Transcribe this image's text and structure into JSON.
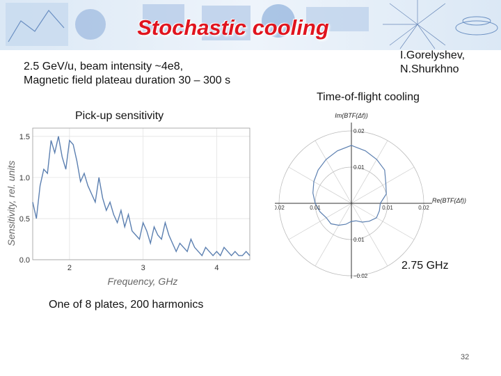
{
  "slide": {
    "title": "Stochastic cooling",
    "params_line1": "2.5 GeV/u, beam intensity ~4e8,",
    "params_line2": "Magnetic field plateau duration 30 – 300 s",
    "authors_line1": "I.Gorelyshev,",
    "authors_line2": "N.Shurkhno",
    "subtitle_tof": "Time-of-flight cooling",
    "pickup_heading": "Pick-up sensitivity",
    "plates_note": "One of 8 plates, 200 harmonics",
    "freq_note": "2.75 GHz",
    "page_number": "32"
  },
  "colors": {
    "title": "#e0141e",
    "trace": "#5b7fb0",
    "banner": "#cfe0f2"
  },
  "chart_data": [
    {
      "type": "line",
      "title": "",
      "xlabel": "Frequency, GHz",
      "ylabel": "Sensitivity, rel. units",
      "xlim": [
        1.5,
        4.45
      ],
      "ylim": [
        0,
        1.6
      ],
      "xticks": [
        "2",
        "3",
        "4"
      ],
      "yticks": [
        "0.0",
        "0.5",
        "1.0",
        "1.5"
      ],
      "grid": true,
      "x": [
        1.5,
        1.55,
        1.6,
        1.65,
        1.7,
        1.75,
        1.8,
        1.85,
        1.9,
        1.95,
        2.0,
        2.05,
        2.1,
        2.15,
        2.2,
        2.25,
        2.3,
        2.35,
        2.4,
        2.45,
        2.5,
        2.55,
        2.6,
        2.65,
        2.7,
        2.75,
        2.8,
        2.85,
        2.9,
        2.95,
        3.0,
        3.05,
        3.1,
        3.15,
        3.2,
        3.25,
        3.3,
        3.35,
        3.4,
        3.45,
        3.5,
        3.55,
        3.6,
        3.65,
        3.7,
        3.75,
        3.8,
        3.85,
        3.9,
        3.95,
        4.0,
        4.05,
        4.1,
        4.15,
        4.2,
        4.25,
        4.3,
        4.35,
        4.4,
        4.45
      ],
      "y": [
        0.7,
        0.5,
        0.9,
        1.1,
        1.05,
        1.45,
        1.3,
        1.5,
        1.25,
        1.1,
        1.45,
        1.4,
        1.2,
        0.95,
        1.05,
        0.9,
        0.8,
        0.7,
        1.0,
        0.75,
        0.6,
        0.7,
        0.55,
        0.45,
        0.6,
        0.4,
        0.55,
        0.35,
        0.3,
        0.25,
        0.45,
        0.35,
        0.2,
        0.4,
        0.3,
        0.25,
        0.45,
        0.3,
        0.2,
        0.1,
        0.2,
        0.15,
        0.1,
        0.25,
        0.15,
        0.1,
        0.05,
        0.15,
        0.1,
        0.05,
        0.1,
        0.05,
        0.15,
        0.1,
        0.05,
        0.1,
        0.05,
        0.05,
        0.1,
        0.05
      ]
    },
    {
      "type": "scatter",
      "title": "",
      "xlabel": "Re(BTF(Δf))",
      "ylabel": "Im(BTF(Δf))",
      "xlim": [
        -0.02,
        0.02
      ],
      "ylim": [
        -0.02,
        0.02
      ],
      "xticks": [
        "0.02",
        "0.01",
        "0.01",
        "0.02"
      ],
      "yticks": [
        "0.02",
        "0.01",
        "0.01",
        "−0.02"
      ],
      "grid": true,
      "polar_trace": {
        "theta_deg": [
          0,
          15,
          30,
          45,
          60,
          75,
          90,
          105,
          120,
          135,
          150,
          165,
          180,
          195,
          210,
          225,
          240,
          255,
          270,
          285,
          300,
          315,
          330,
          345,
          360
        ],
        "radius": [
          0.008,
          0.01,
          0.011,
          0.013,
          0.014,
          0.015,
          0.016,
          0.015,
          0.014,
          0.013,
          0.012,
          0.011,
          0.01,
          0.009,
          0.008,
          0.008,
          0.007,
          0.006,
          0.005,
          0.005,
          0.006,
          0.007,
          0.008,
          0.008,
          0.008
        ]
      }
    }
  ]
}
